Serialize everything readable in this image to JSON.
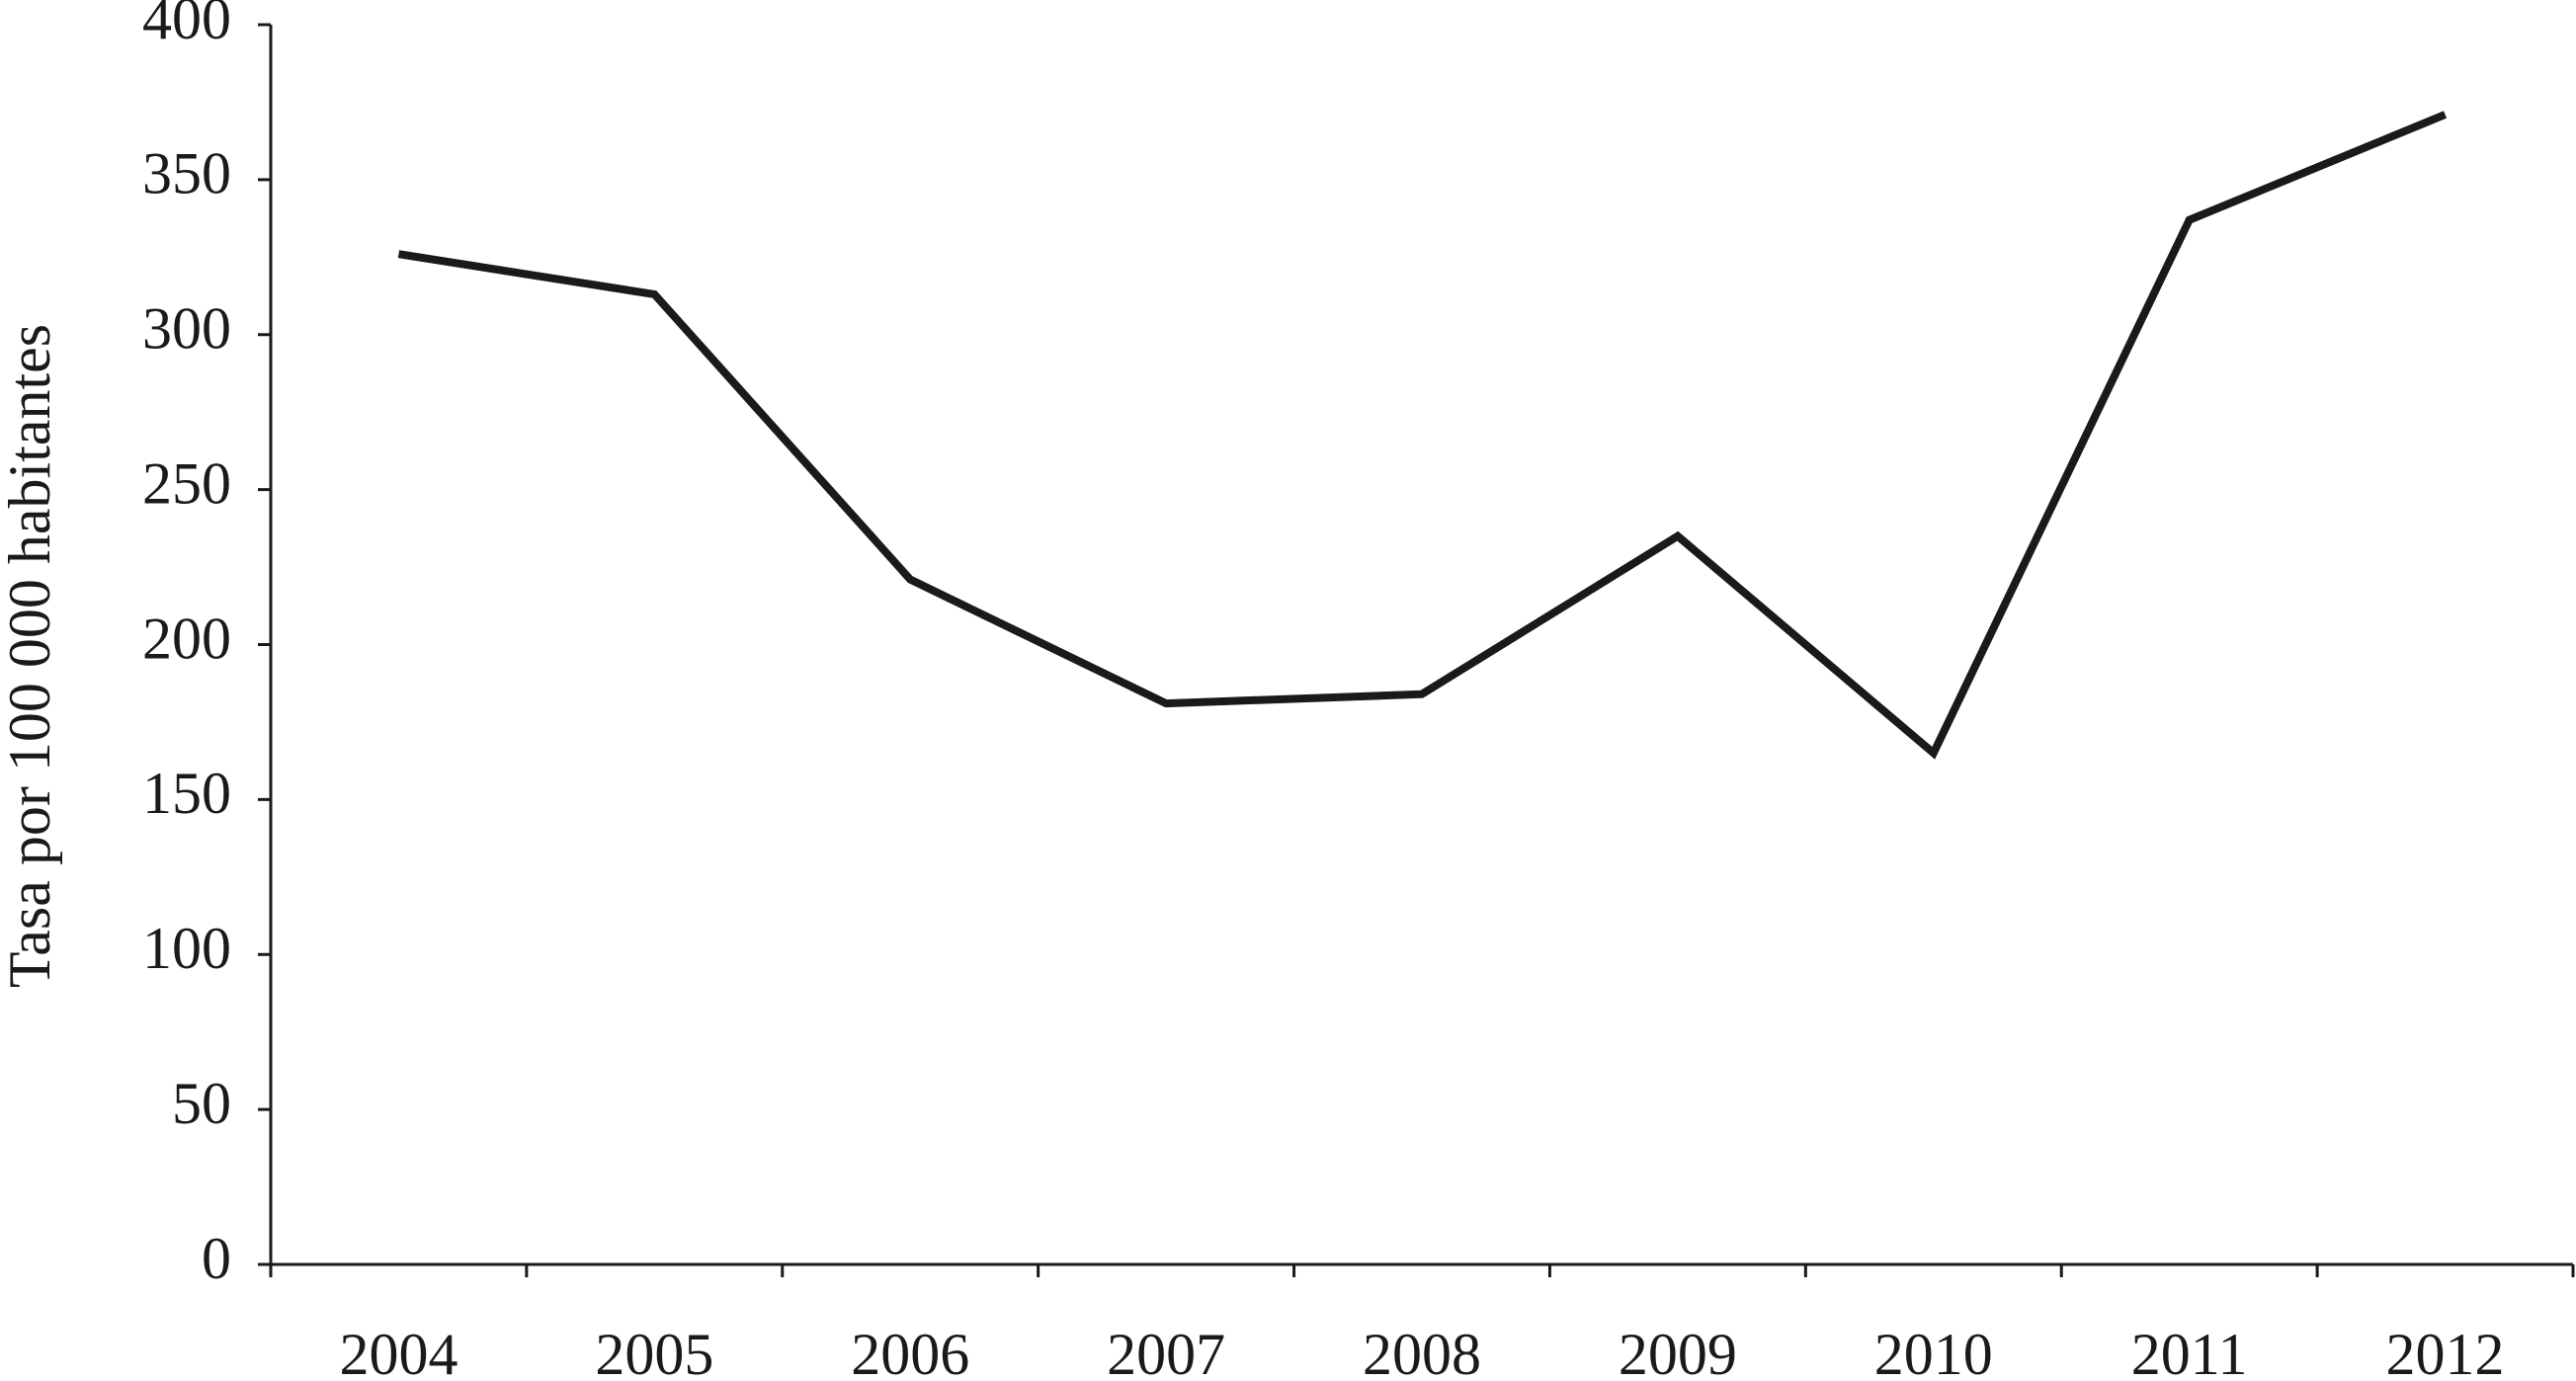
{
  "chart_data": {
    "type": "line",
    "y_label": "Tasa por 100 000 habitantes",
    "categories": [
      "2004",
      "2005",
      "2006",
      "2007",
      "2008",
      "2009",
      "2010",
      "2011",
      "2012"
    ],
    "values": [
      326,
      313,
      221,
      181,
      184,
      235,
      165,
      337,
      371
    ],
    "color": "#1a1a1a",
    "ylim": [
      0,
      400
    ],
    "yticks": [
      0,
      50,
      100,
      150,
      200,
      250,
      300,
      350,
      400
    ],
    "grid": false
  }
}
